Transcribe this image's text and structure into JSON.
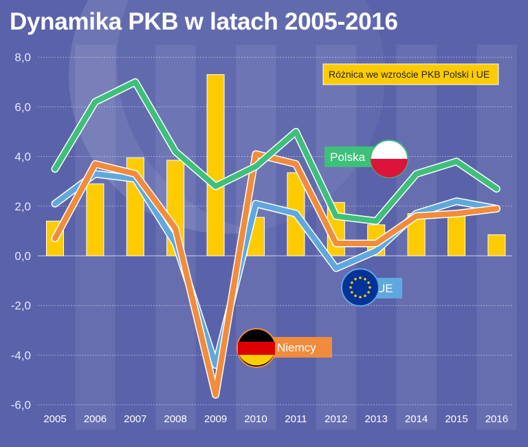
{
  "title": "Dynamika PKB w latach 2005-2016",
  "colors": {
    "background": "#5a62aa",
    "bars": "#fecb00",
    "polska": "#3ebf7a",
    "ue": "#5fa8de",
    "niemcy": "#f08c3c"
  },
  "chart_data": {
    "type": "bar+line",
    "title": "Dynamika PKB w latach 2005-2016",
    "categories": [
      "2005",
      "2006",
      "2007",
      "2008",
      "2009",
      "2010",
      "2011",
      "2012",
      "2013",
      "2014",
      "2015",
      "2016"
    ],
    "ylim": [
      -6,
      8
    ],
    "yticks": [
      "8,0",
      "6,0",
      "4,0",
      "2,0",
      "0,0",
      "-2,0",
      "-4,0",
      "-6,0"
    ],
    "grid": true,
    "bars": {
      "name": "Różnica we wzroście PKB Polski i UE",
      "values": [
        1.4,
        2.9,
        3.95,
        3.85,
        7.3,
        1.55,
        3.35,
        2.15,
        1.25,
        1.7,
        1.65,
        0.85
      ]
    },
    "series": [
      {
        "name": "Polska",
        "values": [
          3.5,
          6.2,
          7.0,
          4.2,
          2.8,
          3.6,
          5.0,
          1.6,
          1.4,
          3.3,
          3.8,
          2.7
        ]
      },
      {
        "name": "UE",
        "values": [
          2.1,
          3.3,
          3.1,
          0.5,
          -4.4,
          2.1,
          1.7,
          -0.5,
          0.2,
          1.7,
          2.2,
          1.9
        ]
      },
      {
        "name": "Niemcy",
        "values": [
          0.7,
          3.7,
          3.3,
          1.1,
          -5.6,
          4.1,
          3.7,
          0.5,
          0.5,
          1.6,
          1.7,
          1.9
        ]
      }
    ],
    "legend": "top-right"
  }
}
